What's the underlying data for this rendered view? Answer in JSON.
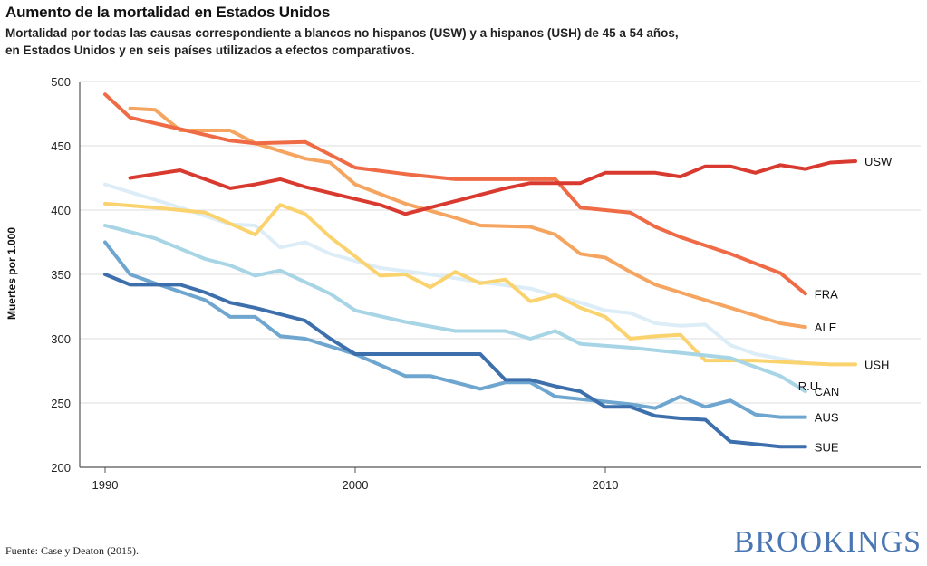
{
  "chart_data": {
    "type": "line",
    "title": "Aumento de la mortalidad en Estados Unidos",
    "subtitle_line1": "Mortalidad por todas las causas correspondiente a blancos no hispanos (USW) y a hispanos (USH) de 45 a 54 años,",
    "subtitle_line2": "en Estados Unidos y en seis países utilizados a efectos comparativos.",
    "ylabel": "Muertes por 1.000",
    "xlabel": "",
    "xlim": [
      1989.5,
      2020
    ],
    "ylim": [
      200,
      500
    ],
    "x_ticks": [
      1990,
      2000,
      2010
    ],
    "y_ticks": [
      200,
      250,
      300,
      350,
      400,
      450,
      500
    ],
    "grid": "horizontal",
    "series": [
      {
        "name": "FRA",
        "color": "#ee6b46",
        "x": [
          1990,
          1991,
          1993,
          1995,
          1996,
          1998,
          1999,
          2000,
          2002,
          2004,
          2006,
          2008,
          2009,
          2011,
          2012,
          2013,
          2015,
          2017,
          2018
        ],
        "y": [
          490,
          472,
          463,
          454,
          452,
          453,
          443,
          433,
          428,
          424,
          424,
          424,
          402,
          398,
          387,
          379,
          366,
          351,
          335
        ]
      },
      {
        "name": "ALE",
        "color": "#f5a560",
        "x": [
          1991,
          1992,
          1993,
          1995,
          1996,
          1998,
          1999,
          2000,
          2002,
          2004,
          2005,
          2007,
          2008,
          2009,
          2010,
          2011,
          2012,
          2013,
          2015,
          2017,
          2018
        ],
        "y": [
          479,
          478,
          462,
          462,
          452,
          440,
          437,
          420,
          405,
          394,
          388,
          387,
          381,
          366,
          363,
          352,
          342,
          336,
          324,
          312,
          309
        ]
      },
      {
        "name": "USW",
        "color": "#d93a2f",
        "x": [
          1991,
          1992,
          1993,
          1995,
          1996,
          1997,
          1998,
          2001,
          2002,
          2004,
          2006,
          2007,
          2008,
          2009,
          2010,
          2011,
          2012,
          2013,
          2014,
          2015,
          2016,
          2017,
          2018,
          2019,
          2020
        ],
        "y": [
          425,
          428,
          431,
          417,
          420,
          424,
          418,
          404,
          397,
          407,
          417,
          421,
          421,
          421,
          429,
          429,
          429,
          426,
          434,
          434,
          429,
          435,
          432,
          437,
          438
        ]
      },
      {
        "name": "USH",
        "color": "#fbd36e",
        "x": [
          1990,
          1992,
          1994,
          1996,
          1997,
          1998,
          1999,
          2001,
          2002,
          2003,
          2004,
          2005,
          2006,
          2007,
          2008,
          2009,
          2010,
          2011,
          2012,
          2013,
          2014,
          2015,
          2016,
          2017,
          2018,
          2019,
          2020
        ],
        "y": [
          405,
          402,
          398,
          381,
          404,
          397,
          379,
          349,
          350,
          340,
          352,
          343,
          346,
          329,
          334,
          324,
          317,
          300,
          302,
          303,
          283,
          283,
          283,
          282,
          281,
          280,
          280
        ]
      },
      {
        "name": "R.U.",
        "color": "#dcedf7",
        "x": [
          1990,
          1992,
          1993,
          1995,
          1996,
          1997,
          1998,
          1999,
          2001,
          2003,
          2005,
          2007,
          2009,
          2010,
          2011,
          2012,
          2013,
          2014,
          2015,
          2016,
          2018
        ],
        "y": [
          420,
          408,
          402,
          389,
          388,
          371,
          375,
          366,
          355,
          350,
          344,
          339,
          328,
          322,
          320,
          312,
          310,
          311,
          295,
          288,
          281
        ]
      },
      {
        "name": "CAN",
        "color": "#a7d5e6",
        "x": [
          1990,
          1992,
          1994,
          1995,
          1996,
          1997,
          1999,
          2000,
          2002,
          2004,
          2006,
          2007,
          2008,
          2009,
          2011,
          2013,
          2015,
          2017,
          2018
        ],
        "y": [
          388,
          378,
          362,
          357,
          349,
          353,
          335,
          322,
          313,
          306,
          306,
          300,
          306,
          296,
          293,
          289,
          285,
          271,
          259
        ]
      },
      {
        "name": "AUS",
        "color": "#6ea6cf",
        "x": [
          1990,
          1991,
          1992,
          1994,
          1995,
          1996,
          1997,
          1998,
          2000,
          2002,
          2003,
          2005,
          2006,
          2007,
          2008,
          2009,
          2011,
          2012,
          2013,
          2014,
          2015,
          2016,
          2017,
          2018
        ],
        "y": [
          375,
          350,
          343,
          330,
          317,
          317,
          302,
          300,
          288,
          271,
          271,
          261,
          266,
          266,
          255,
          253,
          249,
          246,
          255,
          247,
          252,
          241,
          239,
          239
        ]
      },
      {
        "name": "SUE",
        "color": "#3d6fad",
        "x": [
          1990,
          1991,
          1993,
          1994,
          1995,
          1996,
          1997,
          1998,
          1999,
          2000,
          2001,
          2003,
          2005,
          2006,
          2007,
          2008,
          2009,
          2010,
          2011,
          2012,
          2013,
          2014,
          2015,
          2016,
          2017,
          2018
        ],
        "y": [
          350,
          342,
          342,
          336,
          328,
          324,
          319,
          314,
          300,
          288,
          288,
          288,
          288,
          268,
          268,
          263,
          259,
          247,
          247,
          240,
          238,
          237,
          220,
          218,
          216,
          216
        ]
      }
    ]
  },
  "source": "Fuente: Case y Deaton (2015).",
  "brand": "BROOKINGS"
}
